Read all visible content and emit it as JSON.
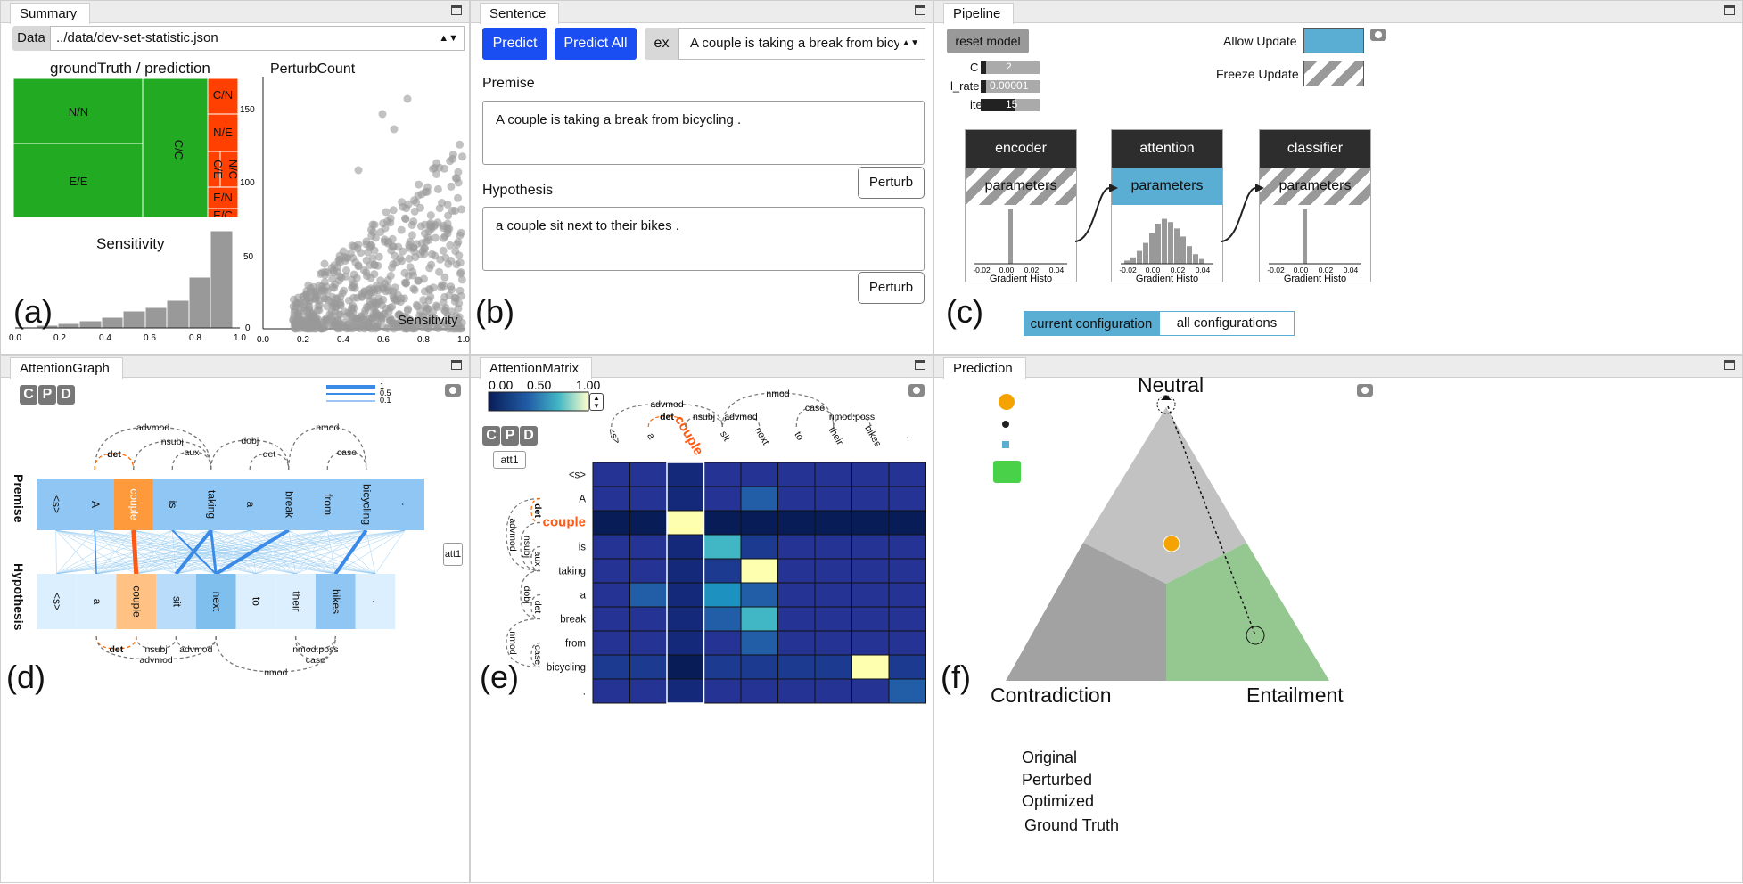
{
  "summary": {
    "tab": "Summary",
    "data_label": "Data",
    "data_file": "../data/dev-set-statistic.json",
    "treemap_title": "groundTruth / prediction",
    "cells": [
      "N/N",
      "E/E",
      "C/C",
      "C/N",
      "N/E",
      "C/E",
      "N/C",
      "E/N",
      "E/C"
    ],
    "hist_title": "Sensitivity",
    "scatter_title": "PerturbCount",
    "scatter_xlabel": "Sensitivity",
    "corner": "(a)"
  },
  "sentence": {
    "tab": "Sentence",
    "predict": "Predict",
    "predict_all": "Predict All",
    "ex": "ex",
    "example": "A couple is taking a break from bicy",
    "premise_label": "Premise",
    "premise_text": "A couple is taking a break from bicycling .",
    "perturb": "Perturb",
    "hypothesis_label": "Hypothesis",
    "hypothesis_text": "a couple sit next to their bikes .",
    "corner": "(b)"
  },
  "pipeline": {
    "tab": "Pipeline",
    "reset": "reset model",
    "allow_update": "Allow Update",
    "freeze_update": "Freeze Update",
    "params": [
      {
        "name": "C",
        "value": "2"
      },
      {
        "name": "l_rate",
        "value": "0.00001"
      },
      {
        "name": "iter",
        "value": "15"
      }
    ],
    "blocks": [
      {
        "title": "encoder",
        "param": "parameters",
        "hist": "Gradient Histo"
      },
      {
        "title": "attention",
        "param": "parameters",
        "hist": "Gradient Histo"
      },
      {
        "title": "classifier",
        "param": "parameters",
        "hist": "Gradient Histo"
      }
    ],
    "hist_ticks": [
      "-0.02",
      "0.00",
      "0.02",
      "0.04"
    ],
    "current_config": "current configuration",
    "all_config": "all configurations",
    "corner": "(c)"
  },
  "attention_graph": {
    "tab": "AttentionGraph",
    "c": "C",
    "p": "P",
    "d": "D",
    "legend": [
      "1",
      "0.5",
      "0.1"
    ],
    "premise_label": "Premise",
    "hypothesis_label": "Hypothesis",
    "att": "att1",
    "premise_tokens": [
      "<s>",
      "A",
      "couple",
      "is",
      "taking",
      "a",
      "break",
      "from",
      "bicycling",
      "."
    ],
    "hypothesis_tokens": [
      "<s>",
      "a",
      "couple",
      "sit",
      "next",
      "to",
      "their",
      "bikes",
      "."
    ],
    "top_arcs": [
      "advmod",
      "det",
      "nsubj",
      "aux",
      "dobj",
      "det",
      "nmod",
      "case"
    ],
    "bottom_arcs": [
      "det",
      "nsubj",
      "advmod",
      "advmod",
      "nmod:poss",
      "case",
      "nmod"
    ],
    "corner": "(d)"
  },
  "attention_matrix": {
    "tab": "AttentionMatrix",
    "scale": [
      "0.00",
      "0.50",
      "1.00"
    ],
    "att": "att1",
    "c": "C",
    "p": "P",
    "d": "D",
    "cols": [
      "<s>",
      "a",
      "couple",
      "sit",
      "next",
      "to",
      "their",
      "bikes",
      "."
    ],
    "rows": [
      "<s>",
      "A",
      "couple",
      "is",
      "taking",
      "a",
      "break",
      "from",
      "bicycling",
      "."
    ],
    "top_arcs": [
      "advmod",
      "det",
      "nsubj",
      "advmod",
      "nmod",
      "case",
      "nmod:poss"
    ],
    "left_arcs": [
      "advmod",
      "det",
      "nsubj",
      "aux",
      "dobj",
      "det",
      "nmod",
      "case"
    ],
    "corner": "(e)"
  },
  "prediction": {
    "tab": "Prediction",
    "neutral": "Neutral",
    "contradiction": "Contradiction",
    "entailment": "Entailment",
    "legend": [
      "Original",
      "Perturbed",
      "Optimized",
      "Ground Truth"
    ],
    "corner": "(f)"
  }
}
